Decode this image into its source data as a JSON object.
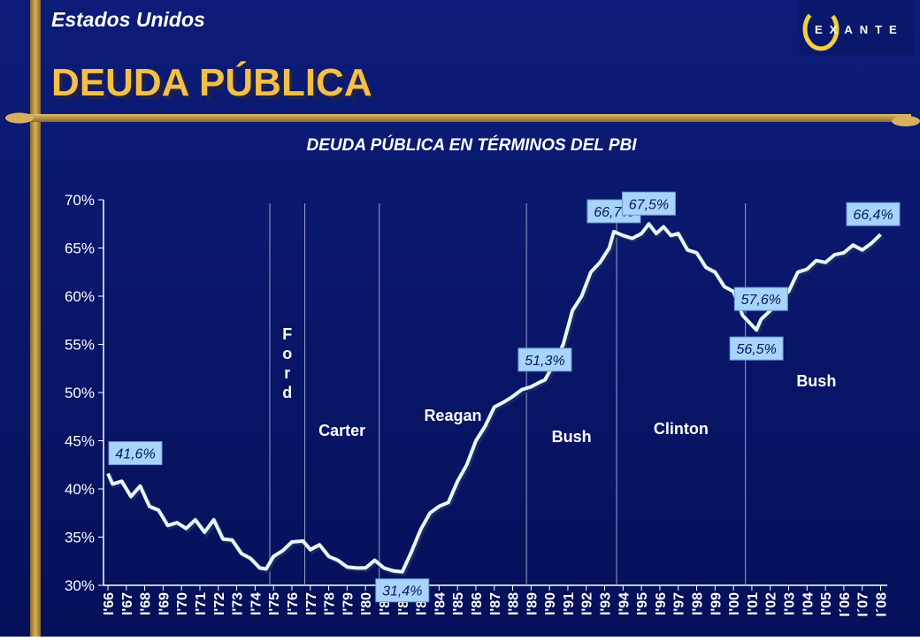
{
  "header": {
    "subtitle": "Estados Unidos",
    "title": "DEUDA PÚBLICA",
    "logo": "EXANTE"
  },
  "chart_data": {
    "type": "line",
    "title": "DEUDA PÚBLICA EN TÉRMINOS DEL PBI",
    "x": [
      1966.0,
      1966.25,
      1966.75,
      1967.25,
      1967.75,
      1968.25,
      1968.75,
      1969.25,
      1969.75,
      1970.25,
      1970.75,
      1971.25,
      1971.75,
      1972.25,
      1972.75,
      1973.25,
      1973.75,
      1974.25,
      1974.6,
      1975.0,
      1975.5,
      1976.0,
      1976.6,
      1977.0,
      1977.5,
      1978.0,
      1978.5,
      1979.0,
      1979.5,
      1980.0,
      1980.5,
      1981.0,
      1981.5,
      1982.0,
      1982.5,
      1983.0,
      1983.5,
      1984.0,
      1984.5,
      1985.0,
      1985.5,
      1986.0,
      1986.5,
      1987.0,
      1987.5,
      1988.0,
      1988.5,
      1989.0,
      1989.5,
      1989.75,
      1990.25,
      1990.75,
      1991.25,
      1991.75,
      1992.25,
      1992.75,
      1993.25,
      1993.5,
      1994.0,
      1994.5,
      1995.0,
      1995.4,
      1995.8,
      1996.2,
      1996.6,
      1997.0,
      1997.5,
      1998.0,
      1998.5,
      1999.0,
      1999.5,
      2000.0,
      2000.5,
      2001.0,
      2001.25,
      2001.5,
      2002.0,
      2002.5,
      2003.0,
      2003.5,
      2004.0,
      2004.5,
      2005.0,
      2005.5,
      2006.0,
      2006.5,
      2007.0,
      2007.5,
      2008.0
    ],
    "values": [
      41.6,
      40.5,
      40.8,
      39.2,
      40.3,
      38.2,
      37.8,
      36.2,
      36.5,
      35.9,
      36.8,
      35.5,
      36.8,
      34.8,
      34.7,
      33.3,
      32.8,
      31.8,
      31.7,
      33.0,
      33.6,
      34.5,
      34.6,
      33.7,
      34.2,
      33.0,
      32.6,
      31.9,
      31.8,
      31.8,
      32.6,
      31.8,
      31.5,
      31.4,
      33.5,
      35.8,
      37.5,
      38.2,
      38.6,
      40.8,
      42.5,
      45.0,
      46.5,
      48.5,
      49.0,
      49.6,
      50.3,
      50.6,
      51.1,
      51.3,
      53.0,
      55.0,
      58.5,
      60.0,
      62.5,
      63.5,
      65.0,
      66.7,
      66.3,
      66.0,
      66.5,
      67.5,
      66.5,
      67.2,
      66.3,
      66.5,
      64.8,
      64.5,
      63.0,
      62.5,
      61.0,
      60.5,
      58.0,
      57.0,
      56.5,
      57.6,
      58.5,
      59.6,
      60.5,
      62.5,
      62.8,
      63.7,
      63.5,
      64.3,
      64.5,
      65.3,
      64.8,
      65.5,
      66.4
    ],
    "value_labels": [
      "41,6%",
      null,
      null,
      null,
      null,
      null,
      null,
      null,
      null,
      null,
      null,
      null,
      null,
      null,
      null,
      null,
      null,
      null,
      null,
      null,
      null,
      null,
      null,
      null,
      null,
      null,
      null,
      null,
      null,
      null,
      null,
      null,
      null,
      "31,4%",
      null,
      null,
      null,
      null,
      null,
      null,
      null,
      null,
      null,
      null,
      null,
      null,
      null,
      null,
      null,
      "51,3%",
      null,
      null,
      null,
      null,
      null,
      null,
      null,
      "66,7%",
      null,
      null,
      null,
      "67,5%",
      null,
      null,
      null,
      null,
      null,
      null,
      null,
      null,
      null,
      null,
      null,
      null,
      "56,5%",
      "57,6%",
      null,
      null,
      null,
      null,
      null,
      null,
      null,
      null,
      null,
      null,
      null,
      null,
      "66,4%"
    ],
    "color": "#eaf6ff",
    "xlim": [
      1965.76,
      2008.36
    ],
    "xticks": [
      {
        "value": 1966,
        "label": "I'66"
      },
      {
        "value": 1967,
        "label": "I'67"
      },
      {
        "value": 1968,
        "label": "I'68"
      },
      {
        "value": 1969,
        "label": "I'69"
      },
      {
        "value": 1970,
        "label": "I'70"
      },
      {
        "value": 1971,
        "label": "I'71"
      },
      {
        "value": 1972,
        "label": "I'72"
      },
      {
        "value": 1973,
        "label": "I'73"
      },
      {
        "value": 1974,
        "label": "I'74"
      },
      {
        "value": 1975,
        "label": "I'75"
      },
      {
        "value": 1976,
        "label": "I'76"
      },
      {
        "value": 1977,
        "label": "I'77"
      },
      {
        "value": 1978,
        "label": "I'78"
      },
      {
        "value": 1979,
        "label": "I'79"
      },
      {
        "value": 1980,
        "label": "I'80"
      },
      {
        "value": 1981,
        "label": "I'81"
      },
      {
        "value": 1982,
        "label": "I'82"
      },
      {
        "value": 1983,
        "label": "I'83"
      },
      {
        "value": 1984,
        "label": "I'84"
      },
      {
        "value": 1985,
        "label": "I'85"
      },
      {
        "value": 1986,
        "label": "I'86"
      },
      {
        "value": 1987,
        "label": "I'87"
      },
      {
        "value": 1988,
        "label": "I'88"
      },
      {
        "value": 1989,
        "label": "I'89"
      },
      {
        "value": 1990,
        "label": "I'90"
      },
      {
        "value": 1991,
        "label": "I'91"
      },
      {
        "value": 1992,
        "label": "I'92"
      },
      {
        "value": 1993,
        "label": "I'93"
      },
      {
        "value": 1994,
        "label": "I'94"
      },
      {
        "value": 1995,
        "label": "I'95"
      },
      {
        "value": 1996,
        "label": "I'96"
      },
      {
        "value": 1997,
        "label": "I'97"
      },
      {
        "value": 1998,
        "label": "I'98"
      },
      {
        "value": 1999,
        "label": "I'99"
      },
      {
        "value": 2000,
        "label": "I'00"
      },
      {
        "value": 2001,
        "label": "I'01"
      },
      {
        "value": 2002,
        "label": "I'02"
      },
      {
        "value": 2003,
        "label": "I'03"
      },
      {
        "value": 2004,
        "label": "I'04"
      },
      {
        "value": 2005,
        "label": "I'05"
      },
      {
        "value": 2006,
        "label": "I´06"
      },
      {
        "value": 2007,
        "label": "I´07"
      },
      {
        "value": 2008,
        "label": "I´08"
      }
    ],
    "ylim": [
      30,
      70
    ],
    "yticks": [
      {
        "value": 30,
        "label": "30%"
      },
      {
        "value": 35,
        "label": "35%"
      },
      {
        "value": 40,
        "label": "40%"
      },
      {
        "value": 45,
        "label": "45%"
      },
      {
        "value": 50,
        "label": "50%"
      },
      {
        "value": 55,
        "label": "55%"
      },
      {
        "value": 60,
        "label": "60%"
      },
      {
        "value": 65,
        "label": "65%"
      },
      {
        "value": 70,
        "label": "70%"
      }
    ],
    "periods": [
      {
        "name": "Ford",
        "start": 1974.8
      },
      {
        "name": "Carter",
        "start": 1976.7
      },
      {
        "name": "Reagan",
        "start": 1980.75
      },
      {
        "name": "Bush",
        "start": 1988.75
      },
      {
        "name": "Clinton",
        "start": 1993.65
      },
      {
        "name": "Bush",
        "start": 2000.65
      }
    ]
  }
}
